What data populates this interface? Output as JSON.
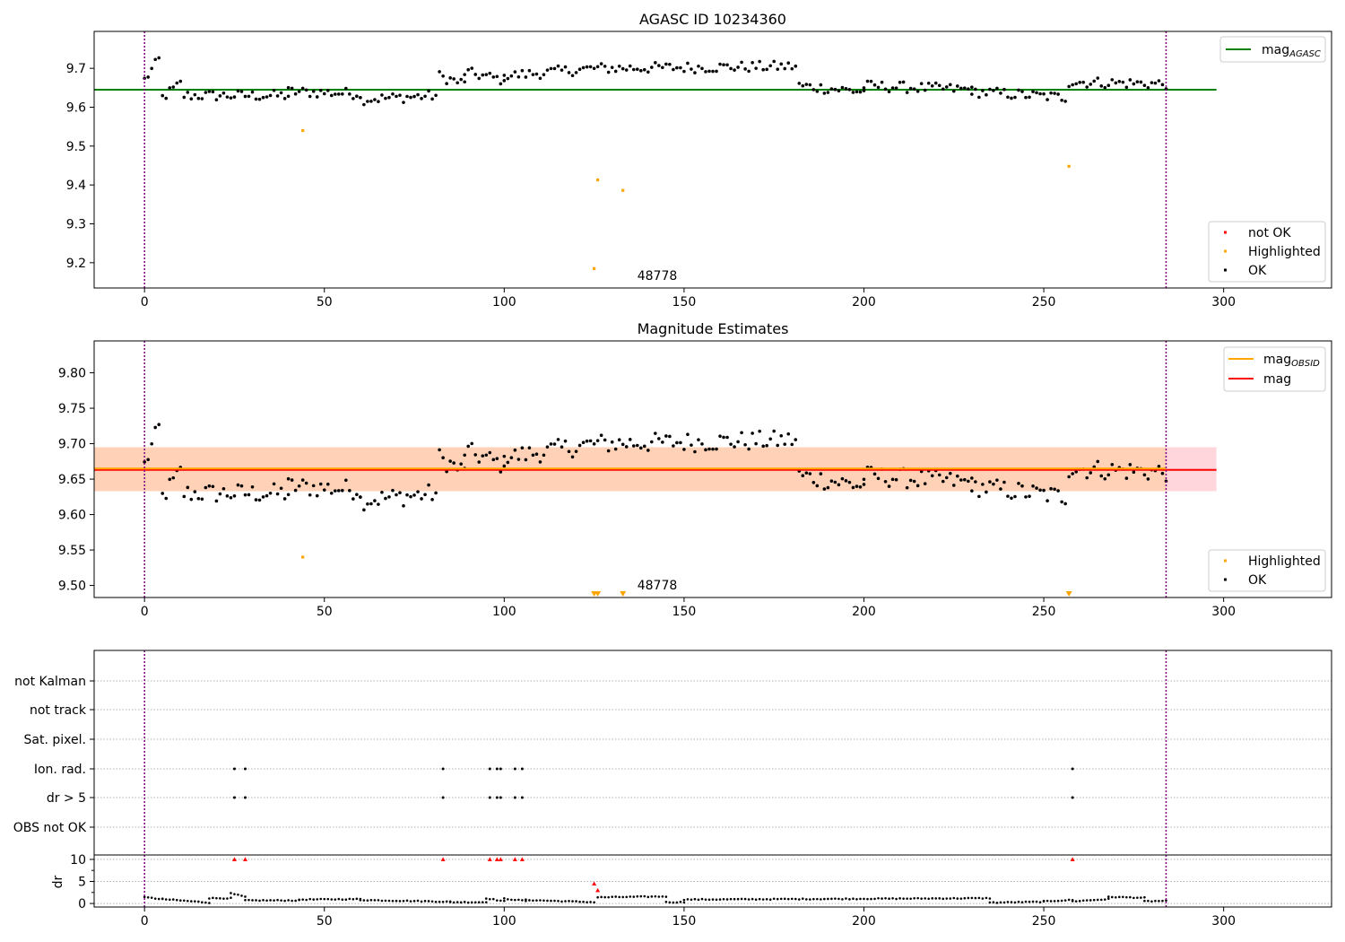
{
  "chart_data": [
    {
      "type": "scatter",
      "title": "AGASC ID 10234360",
      "xlabel": "",
      "ylabel": "",
      "xlim": [
        -14,
        330
      ],
      "ylim": [
        9.135,
        9.795
      ],
      "xticks": [
        0,
        50,
        100,
        150,
        200,
        250,
        300
      ],
      "yticks": [
        9.2,
        9.3,
        9.4,
        9.5,
        9.6,
        9.7
      ],
      "x_tick_labels": [
        "0",
        "50",
        "100",
        "150",
        "200",
        "250",
        "300"
      ],
      "y_tick_labels": [
        "9.2",
        "9.3",
        "9.4",
        "9.5",
        "9.6",
        "9.7"
      ],
      "vlines": [
        0,
        284
      ],
      "legend_lines": {
        "position": "top-right",
        "entries": [
          {
            "label": "mag",
            "sub": "AGASC",
            "color": "#008000"
          }
        ]
      },
      "legend_points": {
        "position": "bottom-right",
        "entries": [
          {
            "label": "not OK",
            "color": "#ff0000"
          },
          {
            "label": "Highlighted",
            "color": "#ffa500"
          },
          {
            "label": "OK",
            "color": "#000000"
          }
        ]
      },
      "hline": {
        "y": 9.645,
        "x_range": [
          -14,
          298
        ],
        "color": "#008000"
      },
      "highlighted": [
        {
          "x": 44,
          "y": 9.54
        },
        {
          "x": 125,
          "y": 9.185
        },
        {
          "x": 126,
          "y": 9.413
        },
        {
          "x": 133,
          "y": 9.386
        },
        {
          "x": 257,
          "y": 9.448
        }
      ],
      "annotation": {
        "text": "48778",
        "x": 137,
        "y": 9.15
      },
      "series": [
        {
          "label": "OK",
          "color": "#000000",
          "reuse": "mag_series"
        }
      ]
    },
    {
      "type": "scatter",
      "title": "Magnitude Estimates",
      "xlabel": "",
      "ylabel": "",
      "xlim": [
        -14,
        330
      ],
      "ylim": [
        9.483,
        9.845
      ],
      "xticks": [
        0,
        50,
        100,
        150,
        200,
        250,
        300
      ],
      "yticks": [
        9.5,
        9.55,
        9.6,
        9.65,
        9.7,
        9.75,
        9.8
      ],
      "x_tick_labels": [
        "0",
        "50",
        "100",
        "150",
        "200",
        "250",
        "300"
      ],
      "y_tick_labels": [
        "9.50",
        "9.55",
        "9.60",
        "9.65",
        "9.70",
        "9.75",
        "9.80"
      ],
      "vlines": [
        0,
        284
      ],
      "legend_lines": {
        "position": "top-right",
        "entries": [
          {
            "label": "mag",
            "sub": "OBSID",
            "color": "#ffa500"
          },
          {
            "label": "mag",
            "sub": "",
            "color": "#ff0000"
          }
        ]
      },
      "legend_points": {
        "position": "bottom-right",
        "entries": [
          {
            "label": "Highlighted",
            "color": "#ffa500"
          },
          {
            "label": "OK",
            "color": "#000000"
          }
        ]
      },
      "band_red": {
        "y1": 9.633,
        "y2": 9.695,
        "x_range": [
          -14,
          298
        ]
      },
      "band_orange": {
        "y1": 9.633,
        "y2": 9.695,
        "x_range": [
          -14,
          284
        ]
      },
      "line_red": {
        "y": 9.663,
        "x_range": [
          -14,
          298
        ]
      },
      "line_orange": {
        "y": 9.665,
        "x_range": [
          -14,
          284
        ]
      },
      "highlighted": [
        {
          "x": 44,
          "y": 9.54
        }
      ],
      "off_scale_markers": [
        125,
        126,
        133,
        257
      ],
      "annotation": {
        "text": "48778",
        "x": 137,
        "y": 9.493
      }
    },
    {
      "type": "scatter",
      "title": "",
      "xlabel": "",
      "xlim": [
        -14,
        330
      ],
      "xticks": [
        0,
        50,
        100,
        150,
        200,
        250,
        300
      ],
      "x_tick_labels": [
        "0",
        "50",
        "100",
        "150",
        "200",
        "250",
        "300"
      ],
      "vlines": [
        0,
        284
      ],
      "flag_rows": [
        "not Kalman",
        "not track",
        "Sat. pixel.",
        "Ion. rad.",
        "dr > 5",
        "OBS not OK"
      ],
      "flag_points": {
        "Ion. rad.": [
          25,
          28,
          83,
          96,
          98,
          99,
          103,
          105,
          258
        ],
        "dr > 5": [
          25,
          28,
          83,
          96,
          98,
          99,
          103,
          105,
          258
        ]
      },
      "dr_ylabel": "dr",
      "dr_ylim": [
        -0.8,
        11
      ],
      "dr_yticks": [
        0,
        5,
        10
      ],
      "dr_y_tick_labels": [
        "0",
        "5",
        "10"
      ],
      "dr_red_markers": [
        {
          "x": 25,
          "y": 10
        },
        {
          "x": 28,
          "y": 10
        },
        {
          "x": 83,
          "y": 10
        },
        {
          "x": 96,
          "y": 10
        },
        {
          "x": 98,
          "y": 10
        },
        {
          "x": 99,
          "y": 10
        },
        {
          "x": 103,
          "y": 10
        },
        {
          "x": 105,
          "y": 10
        },
        {
          "x": 125,
          "y": 4.5
        },
        {
          "x": 126,
          "y": 3
        },
        {
          "x": 258,
          "y": 10
        }
      ],
      "dr_segments": [
        {
          "x": [
            0,
            5
          ],
          "y": [
            1.4,
            1.0
          ]
        },
        {
          "x": [
            5,
            18
          ],
          "y": [
            1.0,
            0.2
          ]
        },
        {
          "x": [
            18,
            24
          ],
          "y": [
            1.2,
            1.2
          ]
        },
        {
          "x": [
            24,
            28
          ],
          "y": [
            2.3,
            1.5
          ]
        },
        {
          "x": [
            28,
            43
          ],
          "y": [
            0.7,
            0.7
          ]
        },
        {
          "x": [
            43,
            60
          ],
          "y": [
            0.9,
            1.0
          ]
        },
        {
          "x": [
            60,
            85
          ],
          "y": [
            0.8,
            0.4
          ]
        },
        {
          "x": [
            85,
            95
          ],
          "y": [
            0.3,
            0.3
          ]
        },
        {
          "x": [
            95,
            100
          ],
          "y": [
            1.2,
            0.5
          ]
        },
        {
          "x": [
            100,
            106
          ],
          "y": [
            1.1,
            0.6
          ]
        },
        {
          "x": [
            106,
            125
          ],
          "y": [
            0.8,
            0.3
          ]
        },
        {
          "x": [
            126,
            145
          ],
          "y": [
            1.4,
            1.6
          ]
        },
        {
          "x": [
            145,
            150
          ],
          "y": [
            0.3,
            0.3
          ]
        },
        {
          "x": [
            150,
            235
          ],
          "y": [
            0.9,
            1.2
          ]
        },
        {
          "x": [
            235,
            250
          ],
          "y": [
            0.2,
            0.4
          ]
        },
        {
          "x": [
            250,
            258
          ],
          "y": [
            0.5,
            0.8
          ]
        },
        {
          "x": [
            258,
            268
          ],
          "y": [
            0.5,
            1.0
          ]
        },
        {
          "x": [
            268,
            278
          ],
          "y": [
            1.5,
            1.3
          ]
        },
        {
          "x": [
            278,
            284
          ],
          "y": [
            0.5,
            0.6
          ]
        }
      ]
    }
  ],
  "mag_series": {
    "x_step": 1,
    "x_start": 0,
    "segments": [
      {
        "x": [
          0,
          4
        ],
        "y": [
          9.67,
          9.722
        ]
      },
      {
        "x": [
          5,
          10
        ],
        "y": [
          9.625,
          9.66
        ]
      },
      {
        "x": [
          11,
          40
        ],
        "y": [
          9.63,
          9.63
        ]
      },
      {
        "x": [
          40,
          60
        ],
        "y": [
          9.64,
          9.635
        ]
      },
      {
        "x": [
          60,
          81
        ],
        "y": [
          9.62,
          9.63
        ]
      },
      {
        "x": [
          82,
          89
        ],
        "y": [
          9.68,
          9.66
        ]
      },
      {
        "x": [
          89,
          100
        ],
        "y": [
          9.69,
          9.67
        ]
      },
      {
        "x": [
          100,
          125
        ],
        "y": [
          9.68,
          9.7
        ]
      },
      {
        "x": [
          126,
          181
        ],
        "y": [
          9.7,
          9.705
        ]
      },
      {
        "x": [
          182,
          200
        ],
        "y": [
          9.655,
          9.64
        ]
      },
      {
        "x": [
          200,
          230
        ],
        "y": [
          9.655,
          9.645
        ]
      },
      {
        "x": [
          230,
          256
        ],
        "y": [
          9.64,
          9.625
        ]
      },
      {
        "x": [
          257,
          284
        ],
        "y": [
          9.665,
          9.66
        ]
      }
    ]
  }
}
